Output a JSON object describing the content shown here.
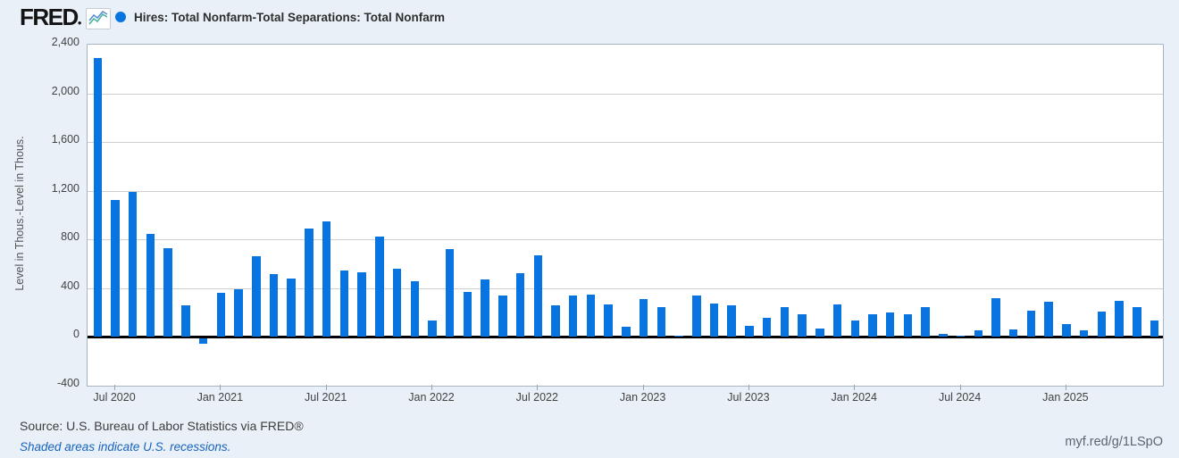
{
  "header": {
    "logo_text": "FRED",
    "legend_label": "Hires: Total Nonfarm-Total Separations: Total Nonfarm"
  },
  "footer": {
    "source": "Source: U.S. Bureau of Labor Statistics via FRED®",
    "recession_note": "Shaded areas indicate U.S. recessions.",
    "short_link": "myf.red/g/1LSpO"
  },
  "colors": {
    "bar": "#0874e2",
    "background": "#e9f0f8",
    "zero_line": "#000000",
    "gridline": "#cfcfcf",
    "link_blue": "#1763be"
  },
  "chart_data": {
    "type": "bar",
    "title": "Hires: Total Nonfarm-Total Separations: Total Nonfarm",
    "ylabel": "Level in Thous.-Level in Thous.",
    "xlabel": "",
    "ylim": [
      -400,
      2400
    ],
    "grid": true,
    "legend_position": "top-left",
    "yticks": [
      {
        "value": 2400,
        "label": "2,400"
      },
      {
        "value": 2000,
        "label": "2,000"
      },
      {
        "value": 1600,
        "label": "1,600"
      },
      {
        "value": 1200,
        "label": "1,200"
      },
      {
        "value": 800,
        "label": "800"
      },
      {
        "value": 400,
        "label": "400"
      },
      {
        "value": 0,
        "label": "0"
      },
      {
        "value": -400,
        "label": "-400"
      }
    ],
    "xticks": [
      {
        "index": 1,
        "label": "Jul 2020"
      },
      {
        "index": 7,
        "label": "Jan 2021"
      },
      {
        "index": 13,
        "label": "Jul 2021"
      },
      {
        "index": 19,
        "label": "Jan 2022"
      },
      {
        "index": 25,
        "label": "Jul 2022"
      },
      {
        "index": 31,
        "label": "Jan 2023"
      },
      {
        "index": 37,
        "label": "Jul 2023"
      },
      {
        "index": 43,
        "label": "Jan 2024"
      },
      {
        "index": 49,
        "label": "Jul 2024"
      },
      {
        "index": 55,
        "label": "Jan 2025"
      }
    ],
    "x": [
      "2020-06",
      "2020-07",
      "2020-08",
      "2020-09",
      "2020-10",
      "2020-11",
      "2020-12",
      "2021-01",
      "2021-02",
      "2021-03",
      "2021-04",
      "2021-05",
      "2021-06",
      "2021-07",
      "2021-08",
      "2021-09",
      "2021-10",
      "2021-11",
      "2021-12",
      "2022-01",
      "2022-02",
      "2022-03",
      "2022-04",
      "2022-05",
      "2022-06",
      "2022-07",
      "2022-08",
      "2022-09",
      "2022-10",
      "2022-11",
      "2022-12",
      "2023-01",
      "2023-02",
      "2023-03",
      "2023-04",
      "2023-05",
      "2023-06",
      "2023-07",
      "2023-08",
      "2023-09",
      "2023-10",
      "2023-11",
      "2023-12",
      "2024-01",
      "2024-02",
      "2024-03",
      "2024-04",
      "2024-05",
      "2024-06",
      "2024-07",
      "2024-08",
      "2024-09",
      "2024-10",
      "2024-11",
      "2024-12",
      "2025-01",
      "2025-02",
      "2025-03",
      "2025-04",
      "2025-05",
      "2025-06"
    ],
    "values": [
      2290,
      1125,
      1190,
      845,
      725,
      255,
      -50,
      360,
      390,
      660,
      515,
      475,
      890,
      950,
      545,
      530,
      820,
      560,
      455,
      130,
      720,
      365,
      470,
      340,
      520,
      665,
      255,
      335,
      345,
      265,
      80,
      310,
      240,
      10,
      335,
      275,
      255,
      85,
      155,
      240,
      185,
      65,
      265,
      135,
      180,
      200,
      185,
      245,
      25,
      10,
      50,
      315,
      60,
      210,
      285,
      100,
      55,
      205,
      290,
      240,
      135
    ]
  }
}
